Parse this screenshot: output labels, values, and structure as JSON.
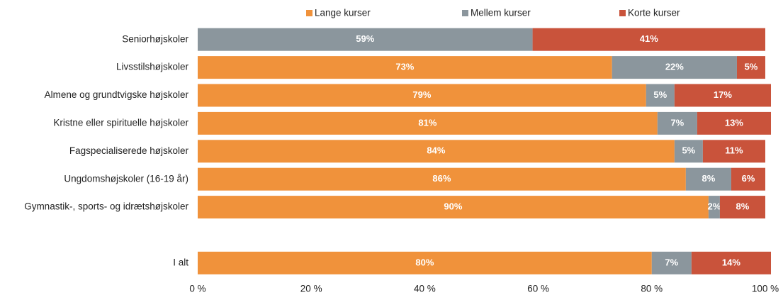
{
  "chart_data": {
    "type": "stacked-barh",
    "categories": [
      "Seniorhøjskoler",
      "Livsstilshøjskoler",
      "Almene og grundtvigske højskoler",
      "Kristne eller spirituelle højskoler",
      "Fagspecialiserede højskoler",
      "Ungdomshøjskoler (16-19 år)",
      "Gymnastik-, sports- og idrætshøjskoler",
      null,
      "I alt"
    ],
    "series": [
      {
        "name": "Lange kurser",
        "color": "#f0923b",
        "values": [
          null,
          73,
          79,
          81,
          84,
          86,
          90,
          null,
          80
        ],
        "value_labels": [
          null,
          "73%",
          "79%",
          "81%",
          "84%",
          "86%",
          "90%",
          null,
          "80%"
        ]
      },
      {
        "name": "Mellem kurser",
        "color": "#8b969d",
        "values": [
          59,
          22,
          5,
          7,
          5,
          8,
          2,
          null,
          7
        ],
        "value_labels": [
          "59%",
          "22%",
          "5%",
          "7%",
          "5%",
          "8%",
          "2%",
          null,
          "7%"
        ]
      },
      {
        "name": "Korte kurser",
        "color": "#c9533b",
        "values": [
          41,
          5,
          17,
          13,
          11,
          6,
          8,
          null,
          14
        ],
        "value_labels": [
          "41%",
          "5%",
          "17%",
          "13%",
          "11%",
          "6%",
          "8%",
          null,
          "14%"
        ]
      }
    ],
    "xlim": [
      0,
      100
    ],
    "xticks": [
      {
        "value": 0,
        "label": "0 %"
      },
      {
        "value": 20,
        "label": "20 %"
      },
      {
        "value": 40,
        "label": "40 %"
      },
      {
        "value": 60,
        "label": "60 %"
      },
      {
        "value": 80,
        "label": "80 %"
      },
      {
        "value": 100,
        "label": "100 %"
      }
    ],
    "legend": "top"
  }
}
